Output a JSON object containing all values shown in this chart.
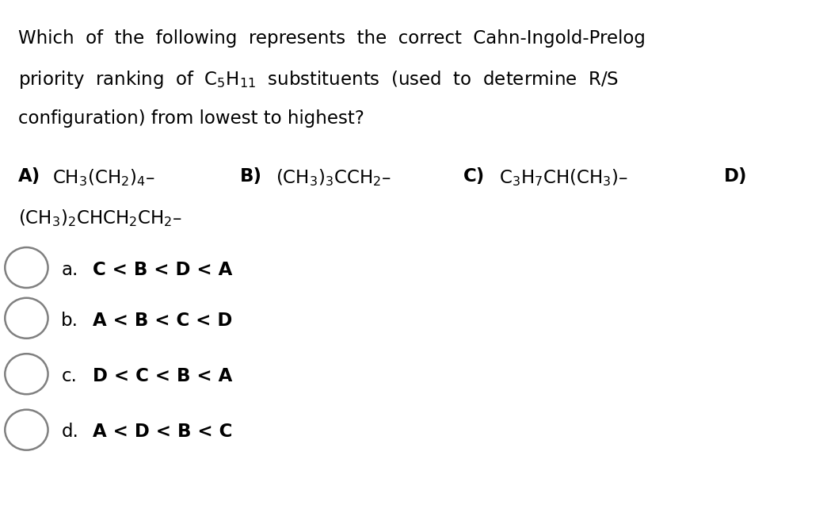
{
  "bg_color": "#ffffff",
  "text_color": "#000000",
  "fig_width": 10.44,
  "fig_height": 6.71,
  "font_size": 16.5,
  "line1": "Which  of  the  following  represents  the  correct  Cahn-Ingold-Prelog",
  "line2_pre": "priority  ranking  of  ",
  "line2_formula": "$\\mathregular{C_5H_{11}}$",
  "line2_post": "  substituents  (used  to  determine  R/S",
  "line3": "configuration) from lowest to highest?",
  "answer_row1_A_label": "A)",
  "answer_row1_A_formula": "$\\mathregular{CH_3(CH_2)_4}$–",
  "answer_row1_B_label": "B)",
  "answer_row1_B_formula": "$\\mathregular{(CH_3)_3CCH_2}$–",
  "answer_row1_C_label": "C)",
  "answer_row1_C_formula": "$\\mathregular{C_3H_7CH(CH_3)}$–",
  "answer_row1_D_label": "D)",
  "answer_row2_D_formula": "$\\mathregular{(CH_3)_2CHCH_2CH_2}$–",
  "choices": [
    {
      "label": "a.",
      "answer": "C < B < D < A"
    },
    {
      "label": "b.",
      "answer": "A < B < C < D"
    },
    {
      "label": "c.",
      "answer": "D < C < B < A"
    },
    {
      "label": "d.",
      "answer": "A < D < B < C"
    }
  ],
  "circle_color": "#808080",
  "circle_linewidth": 1.8
}
